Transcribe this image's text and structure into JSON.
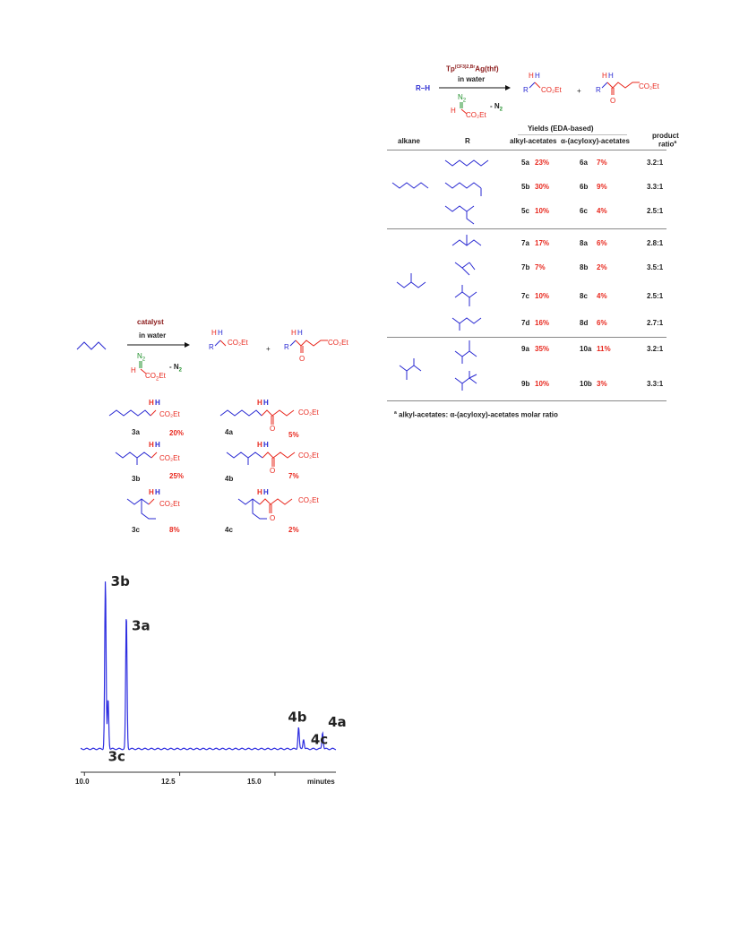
{
  "scheme1": {
    "catalyst": "catalyst",
    "solvent": "in water",
    "eda_n2": "N",
    "eda_n2_sub": "2",
    "eda_h": "H",
    "eda_co2et": "CO",
    "eda_sub2": "2",
    "eda_et": "Et",
    "minus_n2": "- N",
    "minus_n2_sub": "2",
    "plus": "+",
    "prod1_r": "R",
    "prod2_r": "R",
    "h": "H",
    "co2et": "CO₂Et",
    "o": "O",
    "products": [
      {
        "id": "3a",
        "yield": "20%"
      },
      {
        "id": "3b",
        "yield": "25%"
      },
      {
        "id": "3c",
        "yield": "8%"
      },
      {
        "id": "4a",
        "yield": "5%"
      },
      {
        "id": "4b",
        "yield": "7%"
      },
      {
        "id": "4c",
        "yield": "2%"
      }
    ]
  },
  "scheme2": {
    "catalyst_main": "Tp",
    "catalyst_sup": "(CF3)2,Br",
    "catalyst_rest": "Ag(thf)",
    "solvent": "in water",
    "reactant": "R–H",
    "n2": "N",
    "n2_sub": "2",
    "h": "H",
    "co2et": "CO₂Et",
    "minus_n2": "- N",
    "minus_n2_sub": "2",
    "plus": "+",
    "r": "R",
    "o": "O"
  },
  "table": {
    "headers": {
      "yields": "Yields (EDA-based)",
      "alkane": "alkane",
      "r": "R",
      "alkyl": "alkyl-acetates",
      "acyloxy": "α-(acyloxy)-acetates",
      "product": "product",
      "ratio": "ratio",
      "ratio_sup": "a"
    },
    "rows": [
      {
        "a_id": "5a",
        "a_y": "23%",
        "b_id": "6a",
        "b_y": "7%",
        "ratio": "3.2:1"
      },
      {
        "a_id": "5b",
        "a_y": "30%",
        "b_id": "6b",
        "b_y": "9%",
        "ratio": "3.3:1"
      },
      {
        "a_id": "5c",
        "a_y": "10%",
        "b_id": "6c",
        "b_y": "4%",
        "ratio": "2.5:1"
      },
      {
        "a_id": "7a",
        "a_y": "17%",
        "b_id": "8a",
        "b_y": "6%",
        "ratio": "2.8:1"
      },
      {
        "a_id": "7b",
        "a_y": "7%",
        "b_id": "8b",
        "b_y": "2%",
        "ratio": "3.5:1"
      },
      {
        "a_id": "7c",
        "a_y": "10%",
        "b_id": "8c",
        "b_y": "4%",
        "ratio": "2.5:1"
      },
      {
        "a_id": "7d",
        "a_y": "16%",
        "b_id": "8d",
        "b_y": "6%",
        "ratio": "2.7:1"
      },
      {
        "a_id": "9a",
        "a_y": "35%",
        "b_id": "10a",
        "b_y": "11%",
        "ratio": "3.2:1"
      },
      {
        "a_id": "9b",
        "a_y": "10%",
        "b_id": "10b",
        "b_y": "3%",
        "ratio": "3.3:1"
      }
    ],
    "footnote_sup": "a",
    "footnote": "alkyl-acetates: α-(acyloxy)-acetates molar ratio"
  },
  "chart_data": {
    "type": "line",
    "xlabel": "minutes",
    "xlim": [
      9.9,
      16.6
    ],
    "x_ticks": [
      "10.0",
      "12.5",
      "15.0"
    ],
    "series_color": "#2e2ee0",
    "peaks": [
      {
        "label": "3b",
        "x": 10.55,
        "height": 1.0
      },
      {
        "label": "3c",
        "x": 10.62,
        "height": 0.3
      },
      {
        "label": "3a",
        "x": 11.1,
        "height": 0.8
      },
      {
        "label": "4b",
        "x": 15.62,
        "height": 0.13
      },
      {
        "label": "4c",
        "x": 15.75,
        "height": 0.06
      },
      {
        "label": "4a",
        "x": 16.25,
        "height": 0.1
      }
    ]
  }
}
